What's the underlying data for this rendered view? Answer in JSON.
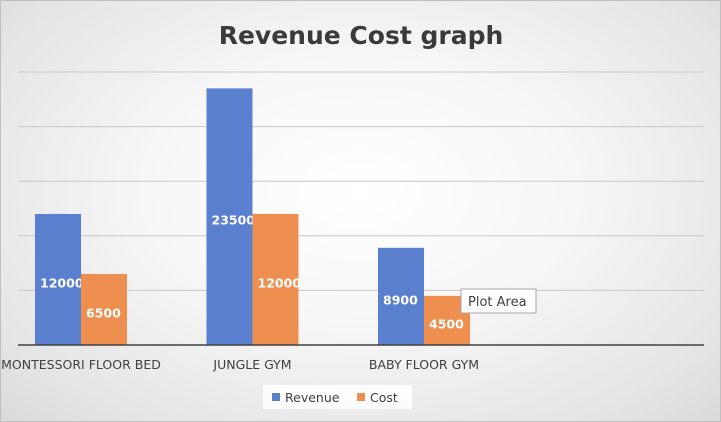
{
  "chart_data": {
    "type": "bar",
    "title": "Revenue Cost graph",
    "categories": [
      "MONTESSORI FLOOR BED",
      "JUNGLE GYM",
      "BABY FLOOR GYM"
    ],
    "series": [
      {
        "name": "Revenue",
        "values": [
          12000,
          23500,
          8900
        ],
        "color": "#5b7fcf"
      },
      {
        "name": "Cost",
        "values": [
          6500,
          12000,
          4500
        ],
        "color": "#ef8f4f"
      }
    ],
    "ylim": [
      0,
      25000
    ],
    "grid": true,
    "legend": "bottom"
  },
  "tooltip": {
    "text": "Plot Area"
  }
}
